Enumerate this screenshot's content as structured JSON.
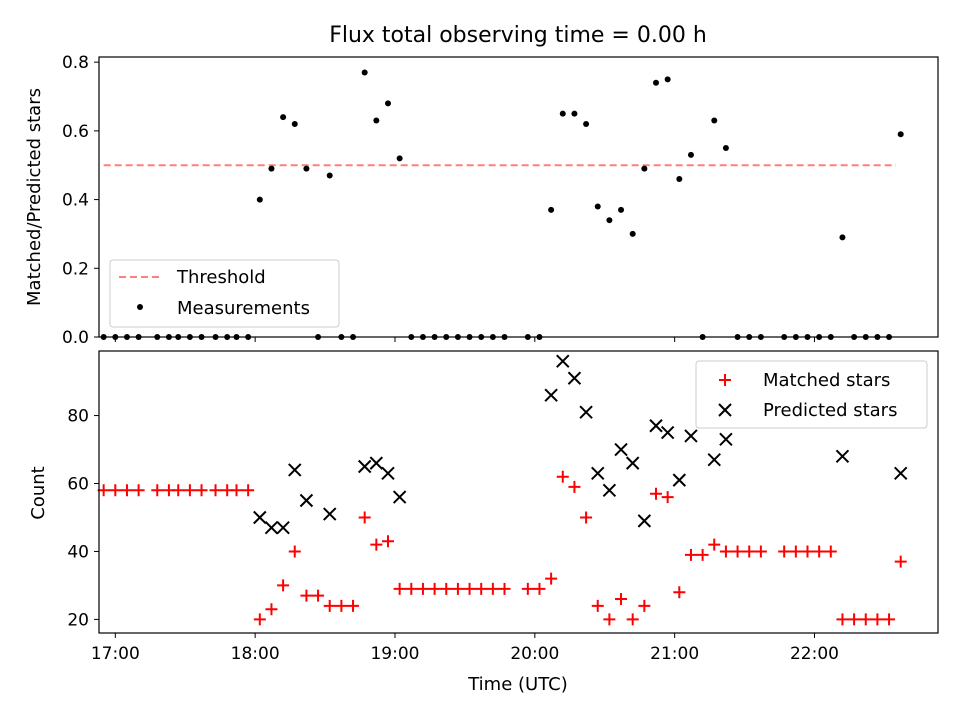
{
  "chart_data": [
    {
      "type": "scatter",
      "title": "Flux total observing time = 0.00 h",
      "xlabel": "",
      "ylabel": "Matched/Predicted stars",
      "xlim": [
        "16:53",
        "22:53"
      ],
      "ylim": [
        0,
        0.815
      ],
      "yticks": [
        0.0,
        0.2,
        0.4,
        0.6,
        0.8
      ],
      "ytick_labels": [
        "0.0",
        "0.2",
        "0.4",
        "0.6",
        "0.8"
      ],
      "legend": {
        "position": "lower-left",
        "entries": [
          "Threshold",
          "Measurements"
        ]
      },
      "threshold": {
        "name": "Threshold",
        "y": 0.5,
        "x": [
          "16:55",
          "22:35"
        ],
        "color": "#ff7f7f",
        "style": "dashed"
      },
      "series": [
        {
          "name": "Measurements",
          "color": "#000000",
          "marker": "dot",
          "points": [
            [
              "16:55",
              0
            ],
            [
              "17:00",
              0
            ],
            [
              "17:05",
              0
            ],
            [
              "17:10",
              0
            ],
            [
              "17:18",
              0
            ],
            [
              "17:23",
              0
            ],
            [
              "17:27",
              0
            ],
            [
              "17:32",
              0
            ],
            [
              "17:37",
              0
            ],
            [
              "17:43",
              0
            ],
            [
              "17:48",
              0
            ],
            [
              "17:52",
              0
            ],
            [
              "17:57",
              0
            ],
            [
              "18:02",
              0.4
            ],
            [
              "18:07",
              0.49
            ],
            [
              "18:12",
              0.64
            ],
            [
              "18:17",
              0.62
            ],
            [
              "18:22",
              0.49
            ],
            [
              "18:27",
              0
            ],
            [
              "18:32",
              0.47
            ],
            [
              "18:37",
              0
            ],
            [
              "18:42",
              0
            ],
            [
              "18:47",
              0.77
            ],
            [
              "18:52",
              0.63
            ],
            [
              "18:57",
              0.68
            ],
            [
              "19:02",
              0.52
            ],
            [
              "19:07",
              0
            ],
            [
              "19:12",
              0
            ],
            [
              "19:17",
              0
            ],
            [
              "19:22",
              0
            ],
            [
              "19:27",
              0
            ],
            [
              "19:32",
              0
            ],
            [
              "19:37",
              0
            ],
            [
              "19:42",
              0
            ],
            [
              "19:47",
              0
            ],
            [
              "19:57",
              0
            ],
            [
              "20:02",
              0
            ],
            [
              "20:07",
              0.37
            ],
            [
              "20:12",
              0.65
            ],
            [
              "20:17",
              0.65
            ],
            [
              "20:22",
              0.62
            ],
            [
              "20:27",
              0.38
            ],
            [
              "20:32",
              0.34
            ],
            [
              "20:37",
              0.37
            ],
            [
              "20:42",
              0.3
            ],
            [
              "20:47",
              0.49
            ],
            [
              "20:52",
              0.74
            ],
            [
              "20:57",
              0.75
            ],
            [
              "21:02",
              0.46
            ],
            [
              "21:07",
              0.53
            ],
            [
              "21:12",
              0
            ],
            [
              "21:17",
              0.63
            ],
            [
              "21:22",
              0.55
            ],
            [
              "21:27",
              0
            ],
            [
              "21:32",
              0
            ],
            [
              "21:37",
              0
            ],
            [
              "21:47",
              0
            ],
            [
              "21:52",
              0
            ],
            [
              "21:57",
              0
            ],
            [
              "22:02",
              0
            ],
            [
              "22:07",
              0
            ],
            [
              "22:12",
              0.29
            ],
            [
              "22:17",
              0
            ],
            [
              "22:22",
              0
            ],
            [
              "22:27",
              0
            ],
            [
              "22:32",
              0
            ],
            [
              "22:37",
              0.59
            ]
          ]
        }
      ]
    },
    {
      "type": "scatter",
      "title": "",
      "xlabel": "Time (UTC)",
      "ylabel": "Count",
      "xlim": [
        "16:53",
        "22:53"
      ],
      "ylim": [
        16,
        99
      ],
      "xtick_labels": [
        "17:00",
        "18:00",
        "19:00",
        "20:00",
        "21:00",
        "22:00"
      ],
      "yticks": [
        20,
        40,
        60,
        80
      ],
      "ytick_labels": [
        "20",
        "40",
        "60",
        "80"
      ],
      "legend": {
        "position": "upper-right",
        "entries": [
          "Matched stars",
          "Predicted stars"
        ]
      },
      "series": [
        {
          "name": "Matched stars",
          "color": "#ff0000",
          "marker": "plus",
          "points": [
            [
              "16:55",
              58
            ],
            [
              "17:00",
              58
            ],
            [
              "17:05",
              58
            ],
            [
              "17:10",
              58
            ],
            [
              "17:18",
              58
            ],
            [
              "17:23",
              58
            ],
            [
              "17:27",
              58
            ],
            [
              "17:32",
              58
            ],
            [
              "17:37",
              58
            ],
            [
              "17:43",
              58
            ],
            [
              "17:48",
              58
            ],
            [
              "17:52",
              58
            ],
            [
              "17:57",
              58
            ],
            [
              "18:02",
              20
            ],
            [
              "18:07",
              23
            ],
            [
              "18:12",
              30
            ],
            [
              "18:17",
              40
            ],
            [
              "18:22",
              27
            ],
            [
              "18:27",
              27
            ],
            [
              "18:32",
              24
            ],
            [
              "18:37",
              24
            ],
            [
              "18:42",
              24
            ],
            [
              "18:47",
              50
            ],
            [
              "18:52",
              42
            ],
            [
              "18:57",
              43
            ],
            [
              "19:02",
              29
            ],
            [
              "19:07",
              29
            ],
            [
              "19:12",
              29
            ],
            [
              "19:17",
              29
            ],
            [
              "19:22",
              29
            ],
            [
              "19:27",
              29
            ],
            [
              "19:32",
              29
            ],
            [
              "19:37",
              29
            ],
            [
              "19:42",
              29
            ],
            [
              "19:47",
              29
            ],
            [
              "19:57",
              29
            ],
            [
              "20:02",
              29
            ],
            [
              "20:07",
              32
            ],
            [
              "20:12",
              62
            ],
            [
              "20:17",
              59
            ],
            [
              "20:22",
              50
            ],
            [
              "20:27",
              24
            ],
            [
              "20:32",
              20
            ],
            [
              "20:37",
              26
            ],
            [
              "20:42",
              20
            ],
            [
              "20:47",
              24
            ],
            [
              "20:52",
              57
            ],
            [
              "20:57",
              56
            ],
            [
              "21:02",
              28
            ],
            [
              "21:07",
              39
            ],
            [
              "21:12",
              39
            ],
            [
              "21:17",
              42
            ],
            [
              "21:22",
              40
            ],
            [
              "21:27",
              40
            ],
            [
              "21:32",
              40
            ],
            [
              "21:37",
              40
            ],
            [
              "21:47",
              40
            ],
            [
              "21:52",
              40
            ],
            [
              "21:57",
              40
            ],
            [
              "22:02",
              40
            ],
            [
              "22:07",
              40
            ],
            [
              "22:12",
              20
            ],
            [
              "22:17",
              20
            ],
            [
              "22:22",
              20
            ],
            [
              "22:27",
              20
            ],
            [
              "22:32",
              20
            ],
            [
              "22:37",
              37
            ]
          ]
        },
        {
          "name": "Predicted stars",
          "color": "#000000",
          "marker": "x",
          "points": [
            [
              "18:02",
              50
            ],
            [
              "18:07",
              47
            ],
            [
              "18:12",
              47
            ],
            [
              "18:17",
              64
            ],
            [
              "18:22",
              55
            ],
            [
              "18:32",
              51
            ],
            [
              "18:47",
              65
            ],
            [
              "18:52",
              66
            ],
            [
              "18:57",
              63
            ],
            [
              "19:02",
              56
            ],
            [
              "20:07",
              86
            ],
            [
              "20:12",
              96
            ],
            [
              "20:17",
              91
            ],
            [
              "20:22",
              81
            ],
            [
              "20:27",
              63
            ],
            [
              "20:32",
              58
            ],
            [
              "20:37",
              70
            ],
            [
              "20:42",
              66
            ],
            [
              "20:47",
              49
            ],
            [
              "20:52",
              77
            ],
            [
              "20:57",
              75
            ],
            [
              "21:02",
              61
            ],
            [
              "21:07",
              74
            ],
            [
              "21:17",
              67
            ],
            [
              "21:22",
              73
            ],
            [
              "22:12",
              68
            ],
            [
              "22:37",
              63
            ]
          ]
        }
      ]
    }
  ]
}
